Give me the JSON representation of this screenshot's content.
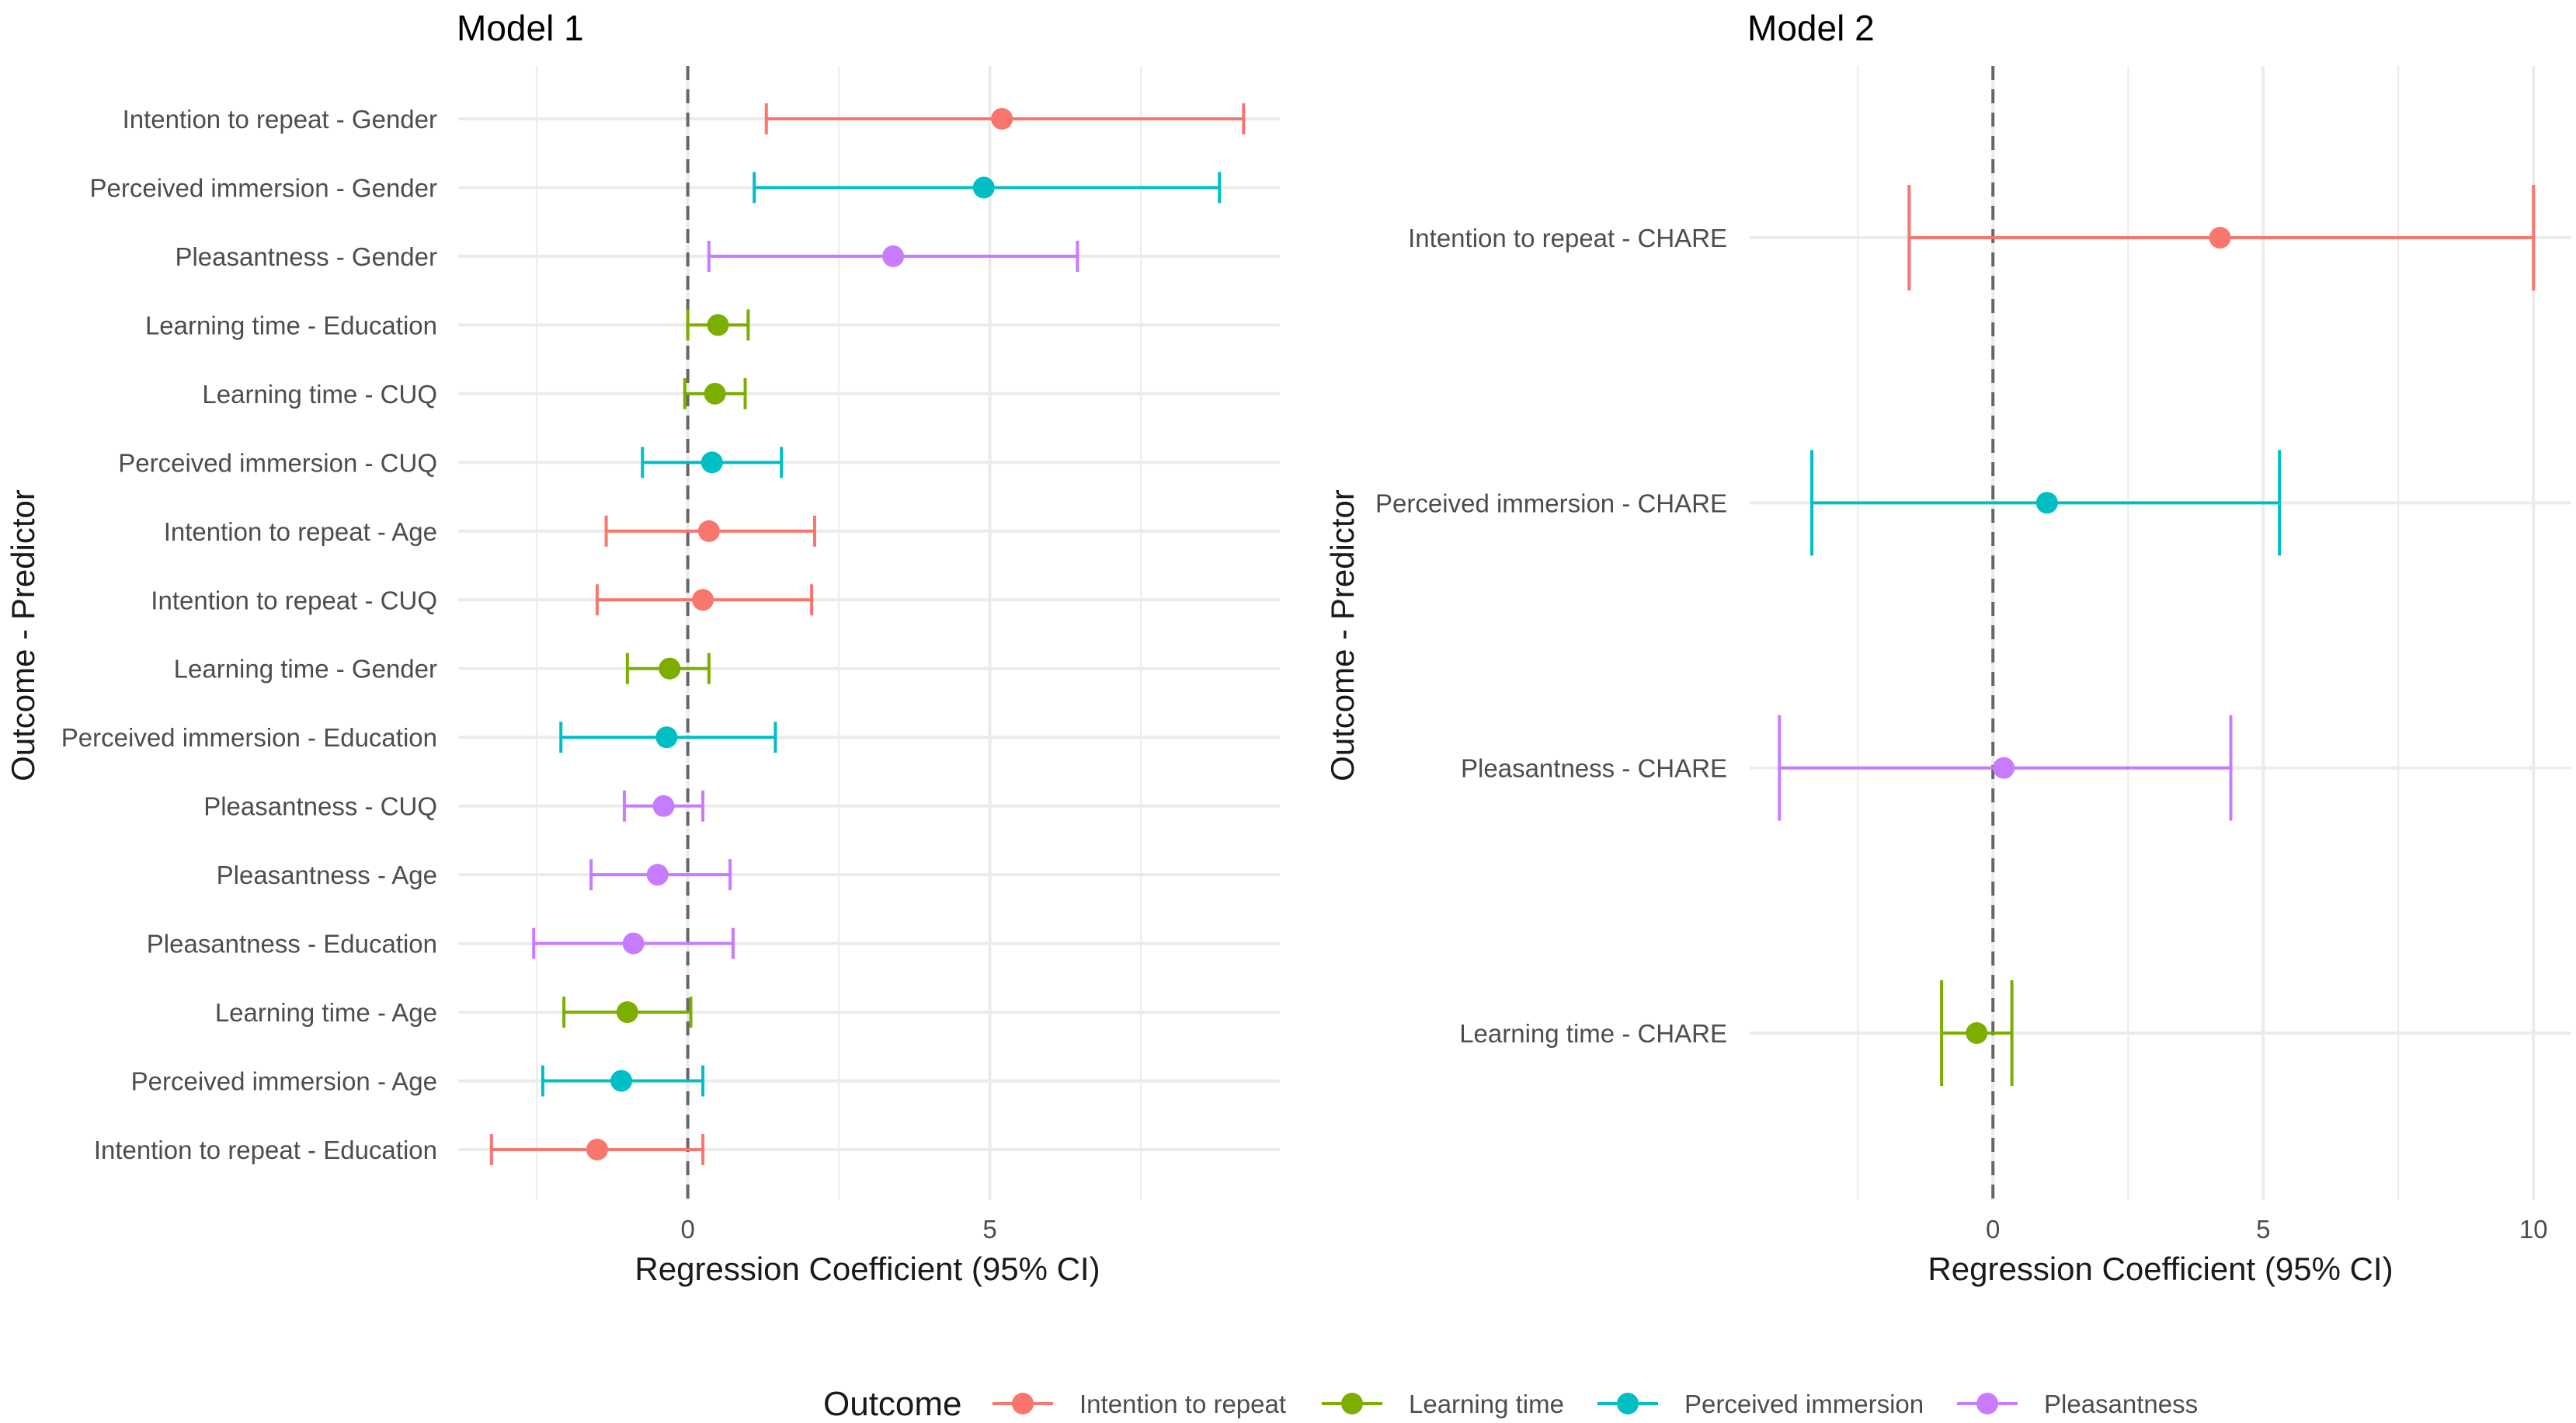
{
  "colors": {
    "Intention to repeat": "#F8766D",
    "Learning time": "#7CAE00",
    "Perceived immersion": "#00BFC4",
    "Pleasantness": "#C77CFF",
    "grid": "#ebebeb",
    "zero_line": "#666666"
  },
  "legend": {
    "title": "Outcome",
    "items": [
      "Intention to repeat",
      "Learning time",
      "Perceived immersion",
      "Pleasantness"
    ]
  },
  "chart_data": [
    {
      "type": "scatter",
      "title": "Model 1",
      "xlabel": "Regression Coefficient (95% CI)",
      "ylabel": "Outcome - Predictor",
      "xlim": [
        -3.8,
        9.8
      ],
      "xticks": [
        0,
        5
      ],
      "xtick_labels": [
        "0",
        "5"
      ],
      "minor_grid": [
        -2.5,
        2.5,
        7.5
      ],
      "rows": [
        {
          "label": "Intention to repeat - Gender",
          "outcome": "Intention to repeat",
          "est": 5.2,
          "lo": 1.3,
          "hi": 9.2
        },
        {
          "label": "Perceived immersion - Gender",
          "outcome": "Perceived immersion",
          "est": 4.9,
          "lo": 1.1,
          "hi": 8.8
        },
        {
          "label": "Pleasantness - Gender",
          "outcome": "Pleasantness",
          "est": 3.4,
          "lo": 0.35,
          "hi": 6.45
        },
        {
          "label": "Learning time - Education",
          "outcome": "Learning time",
          "est": 0.5,
          "lo": 0.0,
          "hi": 1.0
        },
        {
          "label": "Learning time - CUQ",
          "outcome": "Learning time",
          "est": 0.45,
          "lo": -0.05,
          "hi": 0.95
        },
        {
          "label": "Perceived immersion - CUQ",
          "outcome": "Perceived immersion",
          "est": 0.4,
          "lo": -0.75,
          "hi": 1.55
        },
        {
          "label": "Intention to repeat - Age",
          "outcome": "Intention to repeat",
          "est": 0.35,
          "lo": -1.35,
          "hi": 2.1
        },
        {
          "label": "Intention to repeat - CUQ",
          "outcome": "Intention to repeat",
          "est": 0.25,
          "lo": -1.5,
          "hi": 2.05
        },
        {
          "label": "Learning time - Gender",
          "outcome": "Learning time",
          "est": -0.3,
          "lo": -1.0,
          "hi": 0.35
        },
        {
          "label": "Perceived immersion - Education",
          "outcome": "Perceived immersion",
          "est": -0.35,
          "lo": -2.1,
          "hi": 1.45
        },
        {
          "label": "Pleasantness - CUQ",
          "outcome": "Pleasantness",
          "est": -0.4,
          "lo": -1.05,
          "hi": 0.25
        },
        {
          "label": "Pleasantness - Age",
          "outcome": "Pleasantness",
          "est": -0.5,
          "lo": -1.6,
          "hi": 0.7
        },
        {
          "label": "Pleasantness - Education",
          "outcome": "Pleasantness",
          "est": -0.9,
          "lo": -2.55,
          "hi": 0.75
        },
        {
          "label": "Learning time - Age",
          "outcome": "Learning time",
          "est": -1.0,
          "lo": -2.05,
          "hi": 0.05
        },
        {
          "label": "Perceived immersion - Age",
          "outcome": "Perceived immersion",
          "est": -1.1,
          "lo": -2.4,
          "hi": 0.25
        },
        {
          "label": "Intention to repeat - Education",
          "outcome": "Intention to repeat",
          "est": -1.5,
          "lo": -3.25,
          "hi": 0.25
        }
      ]
    },
    {
      "type": "scatter",
      "title": "Model 2",
      "xlabel": "Regression Coefficient (95% CI)",
      "ylabel": "Outcome - Predictor",
      "xlim": [
        -4.5,
        10.7
      ],
      "xticks": [
        0,
        5,
        10
      ],
      "xtick_labels": [
        "0",
        "5",
        "10"
      ],
      "minor_grid": [
        -2.5,
        2.5,
        7.5
      ],
      "rows": [
        {
          "label": "Intention to repeat - CHARE",
          "outcome": "Intention to repeat",
          "est": 4.2,
          "lo": -1.55,
          "hi": 10.0
        },
        {
          "label": "Perceived immersion - CHARE",
          "outcome": "Perceived immersion",
          "est": 1.0,
          "lo": -3.35,
          "hi": 5.3
        },
        {
          "label": "Pleasantness - CHARE",
          "outcome": "Pleasantness",
          "est": 0.2,
          "lo": -3.95,
          "hi": 4.4
        },
        {
          "label": "Learning time - CHARE",
          "outcome": "Learning time",
          "est": -0.3,
          "lo": -0.95,
          "hi": 0.35
        }
      ]
    }
  ]
}
